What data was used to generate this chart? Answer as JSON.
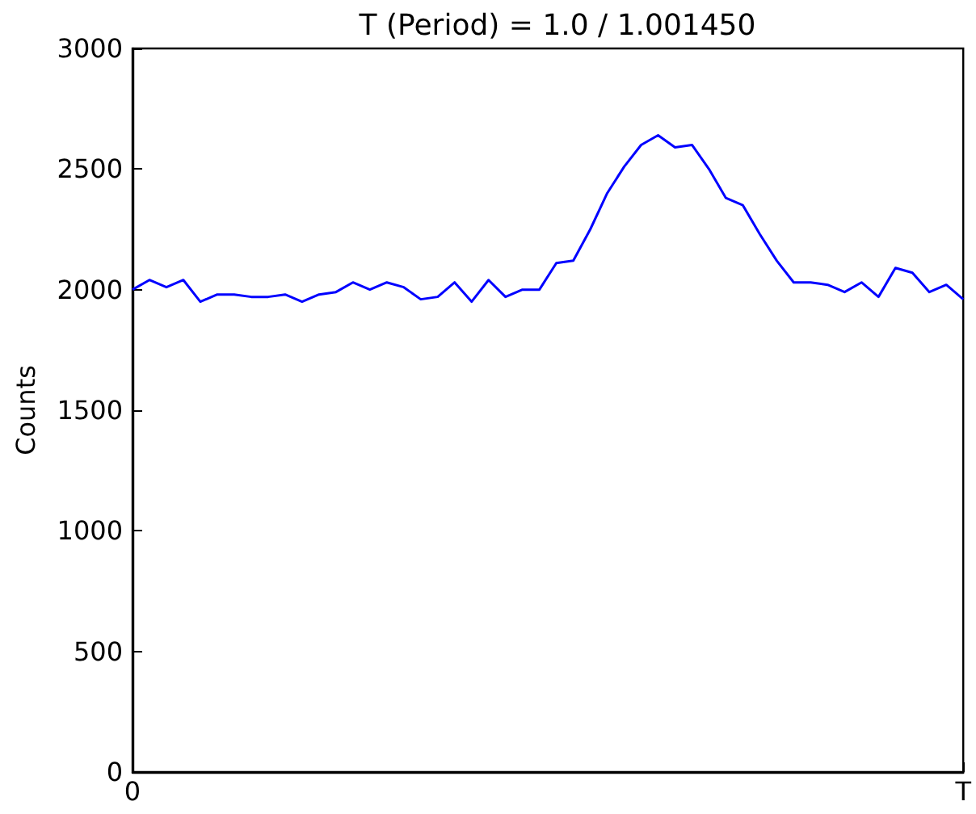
{
  "chart_data": {
    "type": "line",
    "title": "T (Period) = 1.0 / 1.001450",
    "ylabel": "Counts",
    "categories": [
      "0",
      null,
      null,
      null,
      null,
      null,
      null,
      null,
      null,
      null,
      null,
      null,
      null,
      null,
      null,
      null,
      null,
      null,
      null,
      null,
      null,
      null,
      null,
      null,
      null,
      null,
      null,
      null,
      null,
      null,
      null,
      null,
      null,
      null,
      null,
      null,
      null,
      null,
      null,
      null,
      null,
      null,
      null,
      null,
      null,
      null,
      null,
      null,
      null,
      "T"
    ],
    "series": [
      {
        "color": "#0000ff",
        "values": [
          2000,
          2040,
          2010,
          2040,
          1950,
          1980,
          1980,
          1970,
          1970,
          1980,
          1950,
          1980,
          1990,
          2030,
          2000,
          2030,
          2010,
          1960,
          1970,
          2030,
          1950,
          2040,
          1970,
          2000,
          2000,
          2110,
          2120,
          2250,
          2400,
          2510,
          2600,
          2640,
          2590,
          2600,
          2500,
          2380,
          2350,
          2230,
          2120,
          2030,
          2030,
          2020,
          1990,
          2030,
          1970,
          2090,
          2070,
          1990,
          2020,
          1960
        ]
      }
    ],
    "ylim": [
      0,
      3000
    ],
    "yticks": [
      0,
      500,
      1000,
      1500,
      2000,
      2500,
      3000
    ],
    "marker": "none",
    "line_style": "solid"
  }
}
